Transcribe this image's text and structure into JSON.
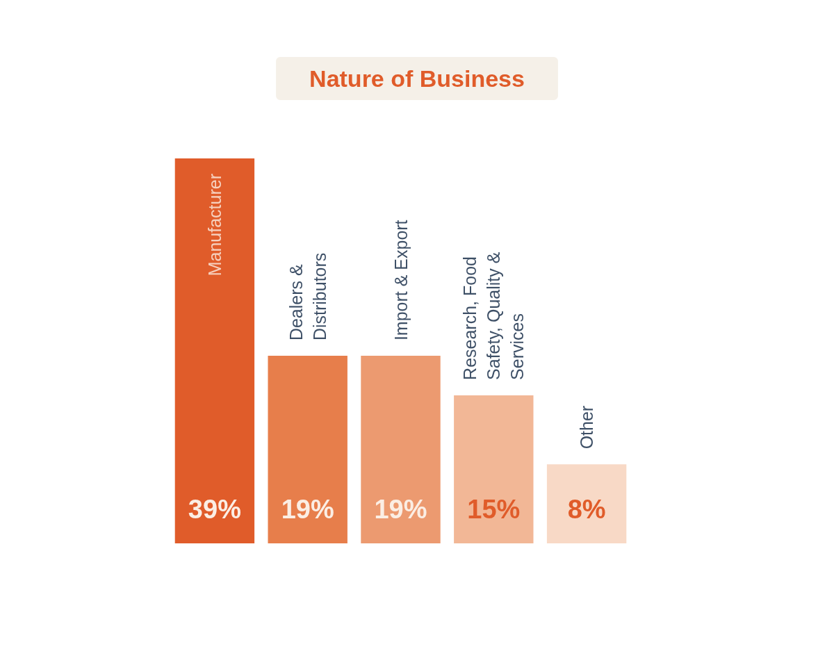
{
  "chart_data": {
    "type": "bar",
    "title": "Nature of Business",
    "categories": [
      "Manufacturer",
      "Dealers & Distributors",
      "Import & Export",
      "Research, Food Safety, Quality & Services",
      "Other"
    ],
    "values": [
      39,
      19,
      19,
      15,
      8
    ],
    "colors": [
      "#e05c2a",
      "#e77e4b",
      "#ec9a70",
      "#f2b796",
      "#f8d9c6"
    ],
    "value_labels": [
      "39%",
      "19%",
      "19%",
      "15%",
      "8%"
    ]
  }
}
